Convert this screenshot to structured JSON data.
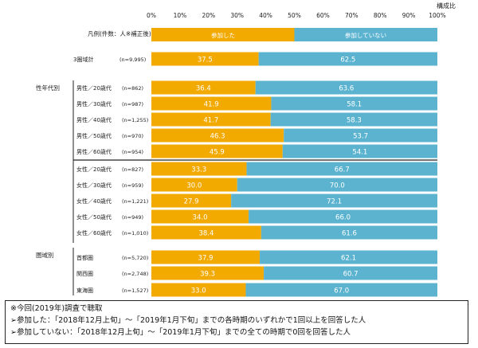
{
  "chart_data": {
    "type": "bar",
    "orientation": "horizontal",
    "stacked": true,
    "scale_label": "構成比",
    "xticks": [
      "0%",
      "10%",
      "20%",
      "30%",
      "40%",
      "50%",
      "60%",
      "70%",
      "80%",
      "90%",
      "100%"
    ],
    "xlim": [
      0,
      100
    ],
    "colors": {
      "participated": "#F2A900",
      "not_participated": "#5BB3D0"
    },
    "legend": {
      "label": "凡例(件数：人※補正後)",
      "participated": "参加した",
      "not_participated": "参加していない"
    },
    "groups": [
      {
        "label": "",
        "rows": [
          {
            "label": "3圏域計",
            "n": "(n=9,995)",
            "participated": 37.5,
            "not_participated": 62.5
          }
        ]
      },
      {
        "label": "性年代別",
        "rows": [
          {
            "label": "男性／20歳代",
            "n": "(n=862)",
            "participated": 36.4,
            "not_participated": 63.6
          },
          {
            "label": "男性／30歳代",
            "n": "(n=987)",
            "participated": 41.9,
            "not_participated": 58.1
          },
          {
            "label": "男性／40歳代",
            "n": "(n=1,255)",
            "participated": 41.7,
            "not_participated": 58.3
          },
          {
            "label": "男性／50歳代",
            "n": "(n=970)",
            "participated": 46.3,
            "not_participated": 53.7
          },
          {
            "label": "男性／60歳代",
            "n": "(n=954)",
            "participated": 45.9,
            "not_participated": 54.1
          },
          {
            "label": "女性／20歳代",
            "n": "(n=827)",
            "participated": 33.3,
            "not_participated": 66.7
          },
          {
            "label": "女性／30歳代",
            "n": "(n=959)",
            "participated": 30.0,
            "not_participated": 70.0
          },
          {
            "label": "女性／40歳代",
            "n": "(n=1,221)",
            "participated": 27.9,
            "not_participated": 72.1
          },
          {
            "label": "女性／50歳代",
            "n": "(n=949)",
            "participated": 34.0,
            "not_participated": 66.0
          },
          {
            "label": "女性／60歳代",
            "n": "(n=1,010)",
            "participated": 38.4,
            "not_participated": 61.6
          }
        ]
      },
      {
        "label": "圏域別",
        "rows": [
          {
            "label": "首都圏",
            "n": "(n=5,720)",
            "participated": 37.9,
            "not_participated": 62.1
          },
          {
            "label": "関西圏",
            "n": "(n=2,748)",
            "participated": 39.3,
            "not_participated": 60.7
          },
          {
            "label": "東海圏",
            "n": "(n=1,527)",
            "participated": 33.0,
            "not_participated": 67.0
          }
        ]
      }
    ]
  },
  "notes": {
    "line1": "※今回(2019年)調査で聴取",
    "line2": "➢参加した：「2018年12月上旬」～「2019年1月下旬」までの各時期のいずれかで1回以上を回答した人",
    "line3": "➢参加していない：「2018年12月上旬」～「2019年1月下旬」までの全ての時期で0回を回答した人"
  }
}
